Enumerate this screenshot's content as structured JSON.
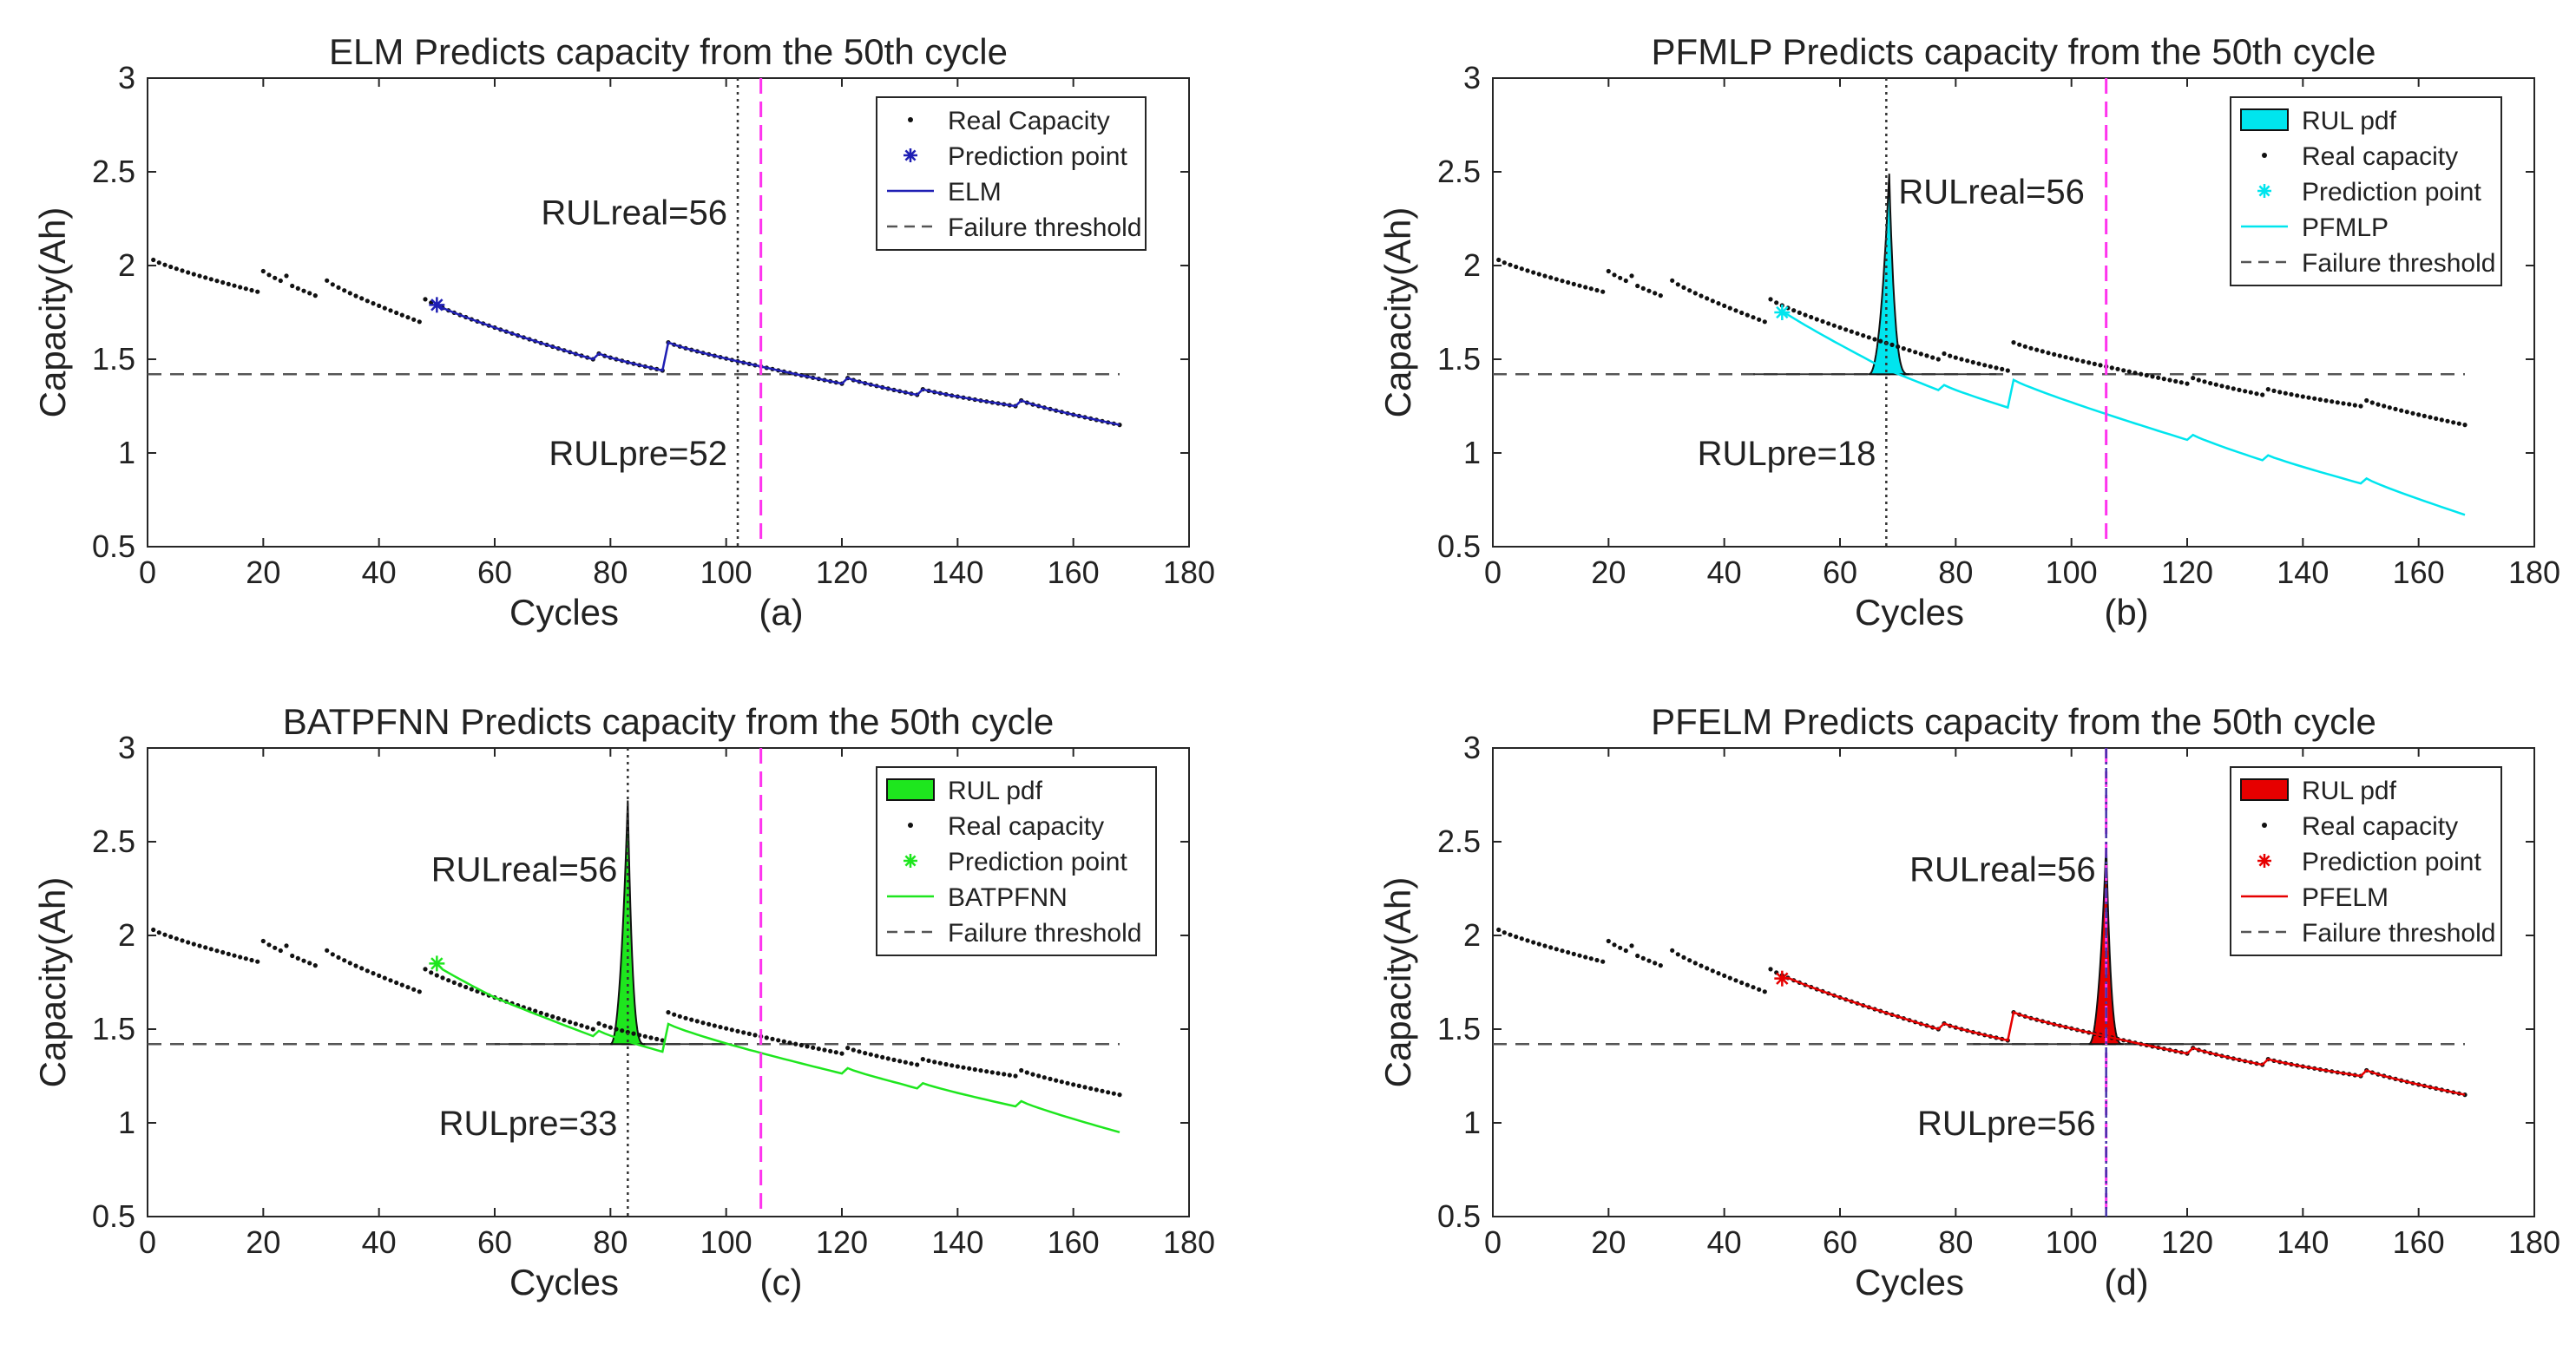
{
  "chart_data": [
    {
      "type": "line",
      "panel_label": "(a)",
      "title": "ELM Predicts capacity from the 50th cycle",
      "xlabel": "Cycles",
      "ylabel": "Capacity(Ah)",
      "xlim": [
        0,
        180
      ],
      "ylim": [
        0.5,
        3
      ],
      "xticks": [
        "0",
        "20",
        "40",
        "60",
        "80",
        "100",
        "120",
        "140",
        "160",
        "180"
      ],
      "yticks": [
        "0.5",
        "1",
        "1.5",
        "2",
        "2.5",
        "3"
      ],
      "threshold": 1.42,
      "prediction_point": {
        "x": 50,
        "y": 1.79
      },
      "real_line_x": 106,
      "pred_line_x": 102,
      "ann_real": "RULreal=56",
      "ann_pre": "RULpre=52",
      "pred_color": "#1f1fb4",
      "pdf": null,
      "pred_offset": [
        [
          50,
          0.0
        ],
        [
          168,
          0.0
        ]
      ],
      "legend": [
        "Real Capacity",
        "Prediction point",
        "ELM",
        "Failure threshold"
      ]
    },
    {
      "type": "line",
      "panel_label": "(b)",
      "title": "PFMLP Predicts capacity from the 50th cycle",
      "xlabel": "Cycles",
      "ylabel": "Capacity(Ah)",
      "xlim": [
        0,
        180
      ],
      "ylim": [
        0.5,
        3
      ],
      "xticks": [
        "0",
        "20",
        "40",
        "60",
        "80",
        "100",
        "120",
        "140",
        "160",
        "180"
      ],
      "yticks": [
        "0.5",
        "1",
        "1.5",
        "2",
        "2.5",
        "3"
      ],
      "threshold": 1.42,
      "prediction_point": {
        "x": 50,
        "y": 1.75
      },
      "real_line_x": 106,
      "pred_line_x": 68,
      "ann_real": "RULreal=56",
      "ann_pre": "RULpre=18",
      "pred_color": "#00e5ee",
      "pdf": {
        "start": 65,
        "peak": 68.5,
        "end": 72,
        "height": 2.49
      },
      "pred_offset": [
        [
          50,
          -0.03
        ],
        [
          68,
          -0.14
        ],
        [
          90,
          -0.2
        ],
        [
          120,
          -0.3
        ],
        [
          168,
          -0.48
        ]
      ],
      "legend": [
        "RUL pdf",
        "Real capacity",
        "Prediction point",
        "PFMLP",
        "Failure threshold"
      ]
    },
    {
      "type": "line",
      "panel_label": "(c)",
      "title": "BATPFNN Predicts capacity from the 50th cycle",
      "xlabel": "Cycles",
      "ylabel": "Capacity(Ah)",
      "xlim": [
        0,
        180
      ],
      "ylim": [
        0.5,
        3
      ],
      "xticks": [
        "0",
        "20",
        "40",
        "60",
        "80",
        "100",
        "120",
        "140",
        "160",
        "180"
      ],
      "yticks": [
        "0.5",
        "1",
        "1.5",
        "2",
        "2.5",
        "3"
      ],
      "threshold": 1.42,
      "prediction_point": {
        "x": 50,
        "y": 1.85
      },
      "real_line_x": 106,
      "pred_line_x": 83,
      "ann_real": "RULreal=56",
      "ann_pre": "RULpre=33",
      "pred_color": "#1ee61e",
      "pdf": {
        "start": 80,
        "peak": 83,
        "end": 86,
        "height": 2.72
      },
      "pred_offset": [
        [
          50,
          0.05
        ],
        [
          60,
          0.0
        ],
        [
          83,
          -0.05
        ],
        [
          100,
          -0.08
        ],
        [
          130,
          -0.12
        ],
        [
          168,
          -0.2
        ]
      ],
      "legend": [
        "RUL pdf",
        "Real capacity",
        "Prediction point",
        "BATPFNN",
        "Failure threshold"
      ]
    },
    {
      "type": "line",
      "panel_label": "(d)",
      "title": "PFELM Predicts capacity from the 50th cycle",
      "xlabel": "Cycles",
      "ylabel": "Capacity(Ah)",
      "xlim": [
        0,
        180
      ],
      "ylim": [
        0.5,
        3
      ],
      "xticks": [
        "0",
        "20",
        "40",
        "60",
        "80",
        "100",
        "120",
        "140",
        "160",
        "180"
      ],
      "yticks": [
        "0.5",
        "1",
        "1.5",
        "2",
        "2.5",
        "3"
      ],
      "threshold": 1.42,
      "prediction_point": {
        "x": 50,
        "y": 1.77
      },
      "real_line_x": 106,
      "pred_line_x": 106,
      "ann_real": "RULreal=56",
      "ann_pre": "RULpre=56",
      "pred_color": "#e60000",
      "pdf": {
        "start": 103,
        "peak": 106,
        "end": 109,
        "height": 2.49
      },
      "pred_offset": [
        [
          50,
          0.0
        ],
        [
          168,
          0.0
        ]
      ],
      "legend": [
        "RUL pdf",
        "Real capacity",
        "Prediction point",
        "PFELM",
        "Failure threshold"
      ]
    }
  ]
}
